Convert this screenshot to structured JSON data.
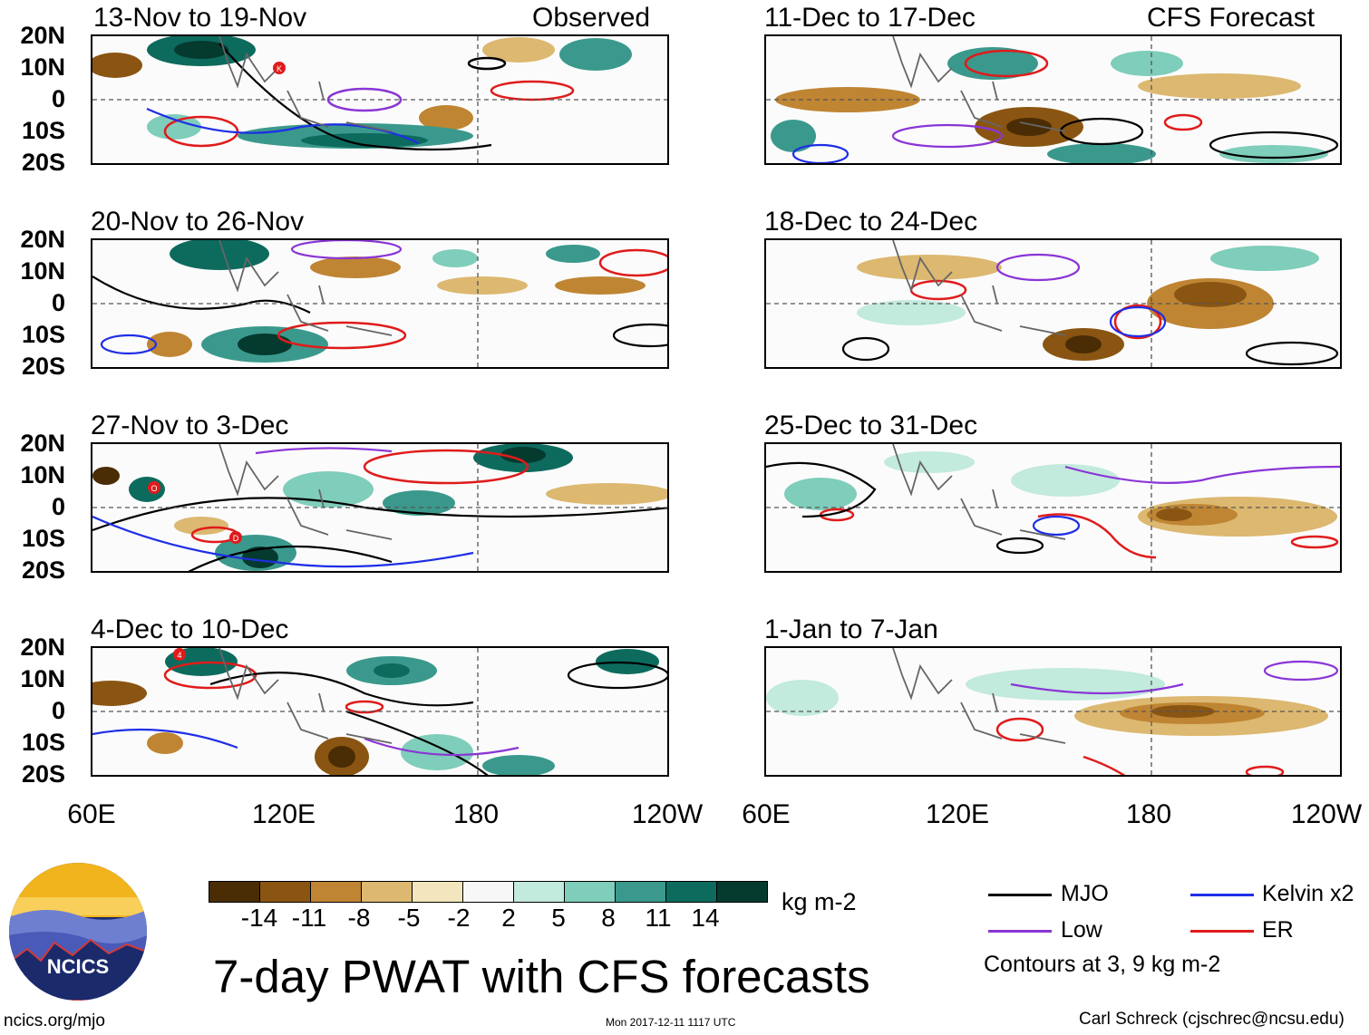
{
  "panels": [
    {
      "title": "13-Nov to 19-Nov",
      "tag": "Observed"
    },
    {
      "title": "20-Nov to 26-Nov",
      "tag": ""
    },
    {
      "title": "27-Nov to 3-Dec",
      "tag": ""
    },
    {
      "title": "4-Dec to 10-Dec",
      "tag": ""
    },
    {
      "title": "11-Dec to 17-Dec",
      "tag": "CFS Forecast"
    },
    {
      "title": "18-Dec to 24-Dec",
      "tag": ""
    },
    {
      "title": "25-Dec to 31-Dec",
      "tag": ""
    },
    {
      "title": "1-Jan to 7-Jan",
      "tag": ""
    }
  ],
  "lat_labels": [
    "20N",
    "10N",
    "0",
    "10S",
    "20S"
  ],
  "lon_labels": [
    "60E",
    "120E",
    "180",
    "120W"
  ],
  "storm_markers": [
    "K",
    "O",
    "D",
    "4"
  ],
  "colorbar": {
    "colors": [
      "#4a2c05",
      "#8a5512",
      "#bf8533",
      "#dcb870",
      "#f3e5bd",
      "#f7f7f7",
      "#c2eadd",
      "#7fcdbb",
      "#3a998c",
      "#0d6b5e",
      "#053a2f"
    ],
    "ticks": [
      "-14",
      "-11",
      "-8",
      "-5",
      "-2",
      "2",
      "5",
      "8",
      "11",
      "14"
    ],
    "units": "kg m-2"
  },
  "title": "7-day PWAT with CFS forecasts",
  "legend": {
    "items": [
      {
        "label": "MJO",
        "color": "#000000"
      },
      {
        "label": "Kelvin x2",
        "color": "#1f2ee6"
      },
      {
        "label": "Low",
        "color": "#8a35d6"
      },
      {
        "label": "ER",
        "color": "#e01b1b"
      }
    ],
    "note": "Contours at 3, 9 kg m-2"
  },
  "logo_text": "NCICS",
  "footer": {
    "url": "ncics.org/mjo",
    "timestamp": "Mon 2017-12-11 1117 UTC",
    "author": "Carl Schreck (cjschrec@ncsu.edu)"
  }
}
